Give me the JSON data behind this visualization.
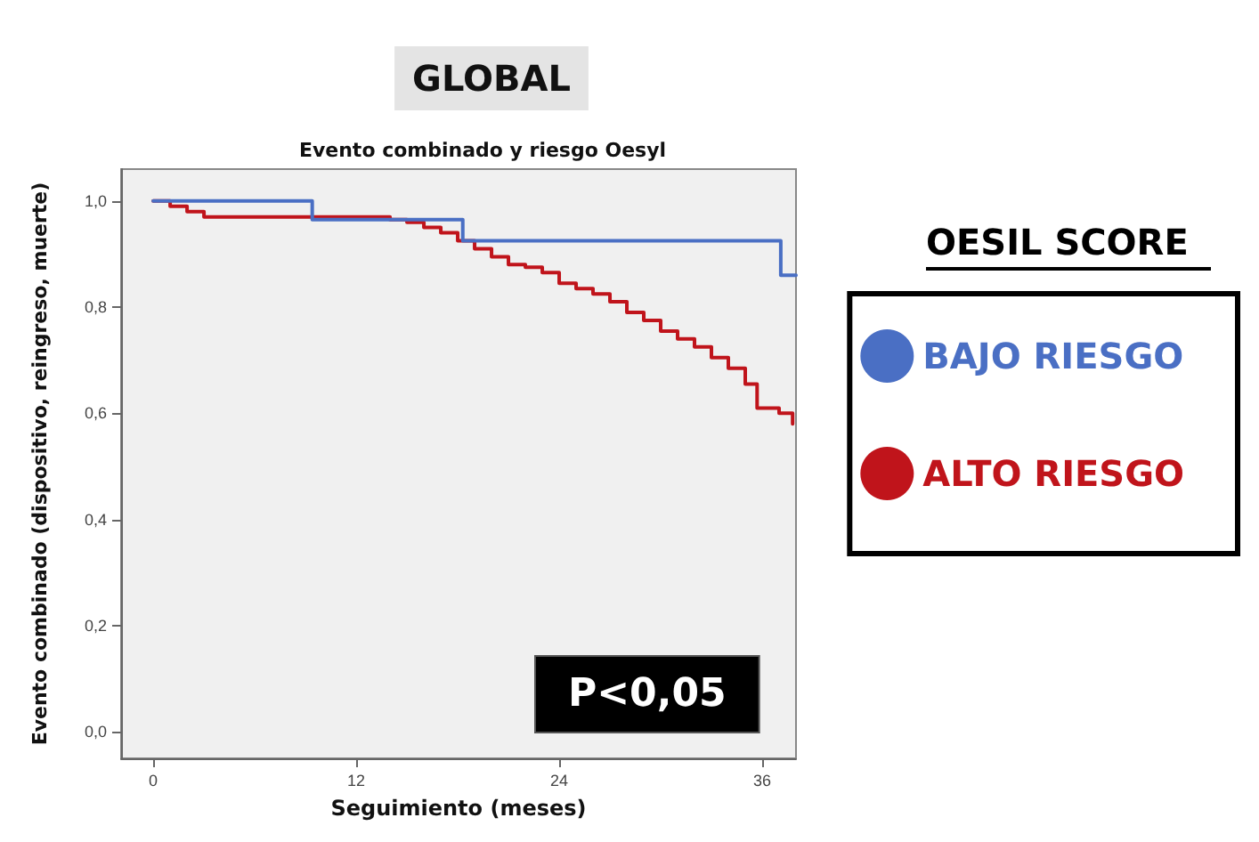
{
  "chart_data": {
    "type": "step",
    "title": "GLOBAL",
    "subtitle": "Evento combinado y riesgo Oesyl",
    "xlabel": "Seguimiento (meses)",
    "ylabel": "Evento combinado (dispositivo, reingreso, muerte)",
    "legend_title": "OESIL SCORE",
    "annotations": [
      "P<0,05"
    ],
    "xlim": [
      -1.9,
      38
    ],
    "xticks": [
      0,
      12,
      24,
      36
    ],
    "ylim": [
      -0.05,
      1.06
    ],
    "yticks": [
      {
        "value": 0,
        "label": "0,0"
      },
      {
        "value": 0.2,
        "label": "0,2"
      },
      {
        "value": 0.4,
        "label": "0,4"
      },
      {
        "value": 0.6,
        "label": "0,6"
      },
      {
        "value": 0.8,
        "label": "0,8"
      },
      {
        "value": 1,
        "label": "1,0"
      }
    ],
    "grid": false,
    "legend": "right",
    "marker": "none",
    "line_style": "solid",
    "series": [
      {
        "name": "BAJO RIESGO",
        "color": "#4a6fc4",
        "x": [
          0,
          9.4,
          18.3,
          37.1,
          38
        ],
        "values": [
          1,
          0.965,
          0.925,
          0.86,
          0.86
        ]
      },
      {
        "name": "ALTO RIESGO",
        "color": "#c0141b",
        "x": [
          0,
          1,
          2,
          3,
          14,
          15,
          16,
          17,
          18,
          19,
          20,
          21,
          22,
          23,
          24,
          25,
          26,
          27,
          28,
          29,
          30,
          31,
          32,
          33,
          34,
          35,
          35.7,
          37,
          37.8
        ],
        "values": [
          1,
          0.99,
          0.98,
          0.97,
          0.965,
          0.96,
          0.95,
          0.94,
          0.925,
          0.91,
          0.895,
          0.88,
          0.875,
          0.865,
          0.845,
          0.835,
          0.825,
          0.81,
          0.79,
          0.775,
          0.755,
          0.74,
          0.725,
          0.705,
          0.685,
          0.655,
          0.61,
          0.6,
          0.58
        ]
      }
    ]
  }
}
